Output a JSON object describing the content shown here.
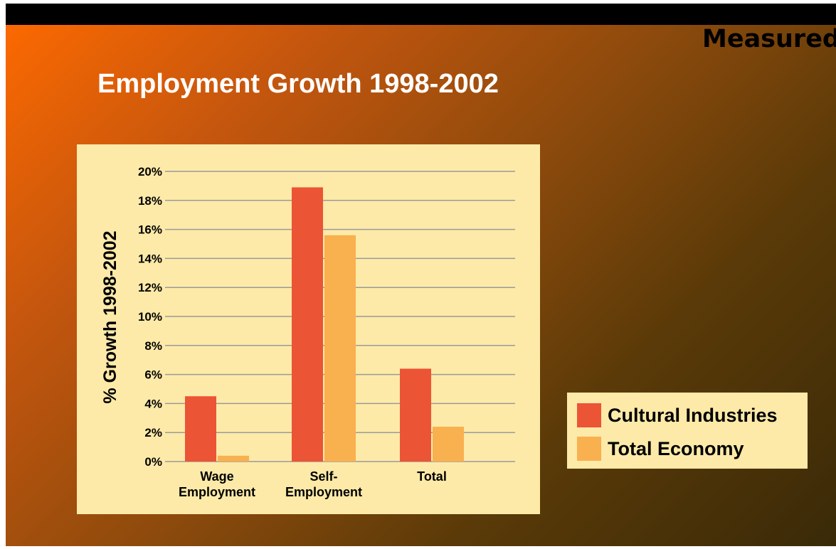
{
  "slide": {
    "corner_text": "Measured",
    "title": "Employment Growth 1998-2002",
    "background_colors": [
      "#ff6a00",
      "#3a2a08"
    ]
  },
  "legend": {
    "items": [
      {
        "label": "Cultural Industries",
        "color": "#ec5436"
      },
      {
        "label": "Total Economy",
        "color": "#f9b04f"
      }
    ]
  },
  "chart_data": {
    "type": "bar",
    "title": "",
    "xlabel": "",
    "ylabel": "% Growth 1998-2002",
    "categories": [
      [
        "Wage",
        "Employment"
      ],
      [
        "Self-",
        "Employment"
      ],
      [
        "Total"
      ]
    ],
    "series": [
      {
        "name": "Cultural Industries",
        "color": "#ec5436",
        "values": [
          4.5,
          18.9,
          6.4
        ]
      },
      {
        "name": "Total Economy",
        "color": "#f9b04f",
        "values": [
          0.4,
          15.6,
          2.4
        ]
      }
    ],
    "ylim": [
      0,
      20
    ],
    "yticks": [
      0,
      2,
      4,
      6,
      8,
      10,
      12,
      14,
      16,
      18,
      20
    ],
    "ytick_labels": [
      "0%",
      "2%",
      "4%",
      "6%",
      "8%",
      "10%",
      "12%",
      "14%",
      "16%",
      "18%",
      "20%"
    ],
    "grid": true,
    "legend_position": "right",
    "panel_color": "#fdeaa8",
    "grid_color": "#9a9a9a"
  }
}
